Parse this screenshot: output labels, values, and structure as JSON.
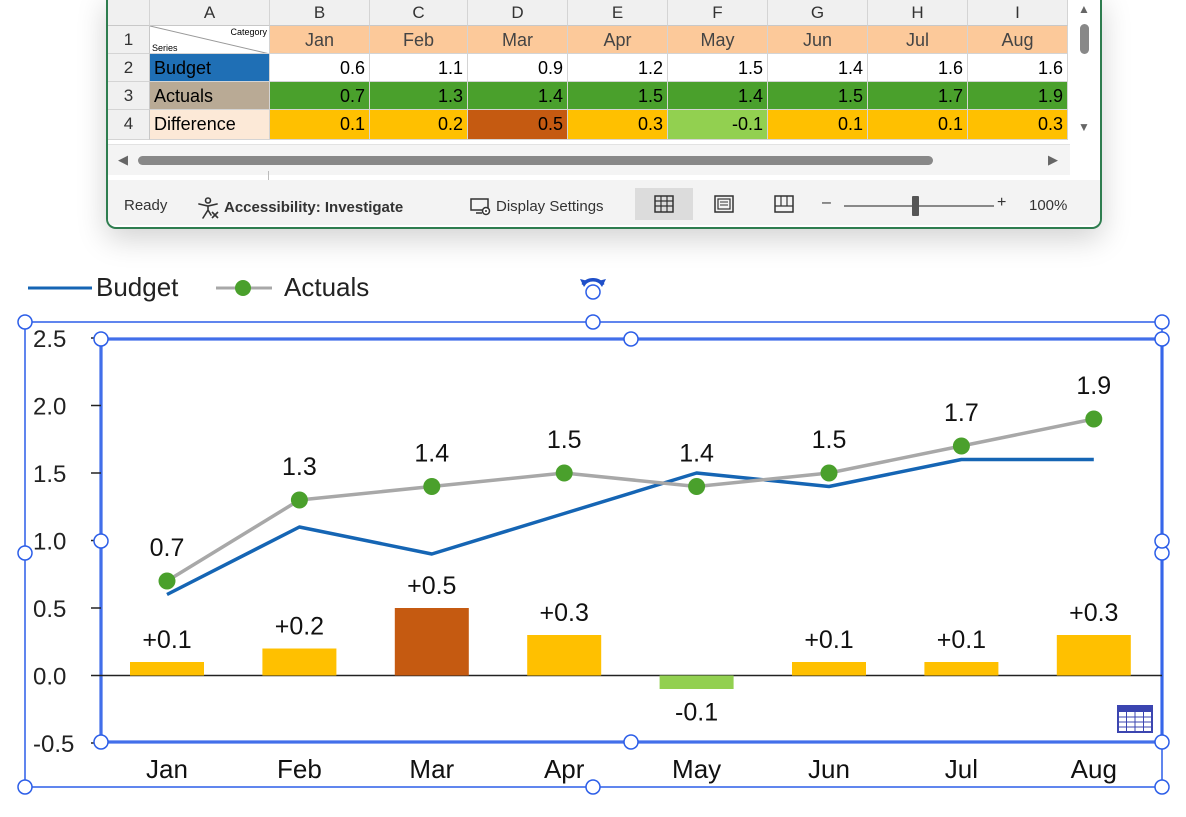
{
  "spreadsheet": {
    "columns": [
      "A",
      "B",
      "C",
      "D",
      "E",
      "F",
      "G",
      "H",
      "I"
    ],
    "rows": [
      "1",
      "2",
      "3",
      "4"
    ],
    "header_cell": {
      "category": "Category",
      "series": "Series"
    },
    "months": [
      "Jan",
      "Feb",
      "Mar",
      "Apr",
      "May",
      "Jun",
      "Jul",
      "Aug"
    ],
    "budget": {
      "label": "Budget",
      "values": [
        "0.6",
        "1.1",
        "0.9",
        "1.2",
        "1.5",
        "1.4",
        "1.6",
        "1.6"
      ]
    },
    "actuals": {
      "label": "Actuals",
      "values": [
        "0.7",
        "1.3",
        "1.4",
        "1.5",
        "1.4",
        "1.5",
        "1.7",
        "1.9"
      ]
    },
    "difference": {
      "label": "Difference",
      "values": [
        "0.1",
        "0.2",
        "0.5",
        "0.3",
        "-0.1",
        "0.1",
        "0.1",
        "0.3"
      ]
    }
  },
  "status_bar": {
    "ready": "Ready",
    "accessibility": "Accessibility: Investigate",
    "display_settings": "Display Settings",
    "zoom_minus": "–",
    "zoom_plus": "+",
    "zoom_level": "100%"
  },
  "colors": {
    "budget_line": "#1565b4",
    "actuals_line": "#a8a8a8",
    "actuals_marker": "#4aa02c",
    "diff_positive": "#ffc000",
    "diff_max": "#c55a11",
    "diff_negative": "#92d050",
    "header_orange": "#fcc99a",
    "budget_label_bg": "#1f6fb5",
    "actuals_label_bg": "#b9aa95",
    "difference_label_bg": "#fce9d7",
    "selection": "#2b5de8"
  },
  "icons": [
    "accessibility-icon",
    "display-settings-icon",
    "normal-view-icon",
    "page-layout-icon",
    "page-break-icon",
    "rotate-handle-icon",
    "data-table-icon"
  ],
  "chart_data": {
    "type": "line",
    "categories": [
      "Jan",
      "Feb",
      "Mar",
      "Apr",
      "May",
      "Jun",
      "Jul",
      "Aug"
    ],
    "series": [
      {
        "name": "Budget",
        "type": "line",
        "values": [
          0.6,
          1.1,
          0.9,
          1.2,
          1.5,
          1.4,
          1.6,
          1.6
        ]
      },
      {
        "name": "Actuals",
        "type": "line-marker",
        "values": [
          0.7,
          1.3,
          1.4,
          1.5,
          1.4,
          1.5,
          1.7,
          1.9
        ]
      },
      {
        "type": "bar",
        "values": [
          0.1,
          0.2,
          0.5,
          0.3,
          -0.1,
          0.1,
          0.1,
          0.3
        ]
      }
    ],
    "actual_labels": [
      "0.7",
      "1.3",
      "1.4",
      "1.5",
      "1.4",
      "1.5",
      "1.7",
      "1.9"
    ],
    "diff_labels": [
      "+0.1",
      "+0.2",
      "+0.5",
      "+0.3",
      "-0.1",
      "+0.1",
      "+0.1",
      "+0.3"
    ],
    "y_ticks": [
      "2.5",
      "2.0",
      "1.5",
      "1.0",
      "0.5",
      "0.0",
      "-0.5"
    ],
    "ylim": [
      -0.5,
      2.5
    ],
    "legend": [
      "Budget",
      "Actuals"
    ],
    "legend_position": "top-left",
    "grid": false
  }
}
